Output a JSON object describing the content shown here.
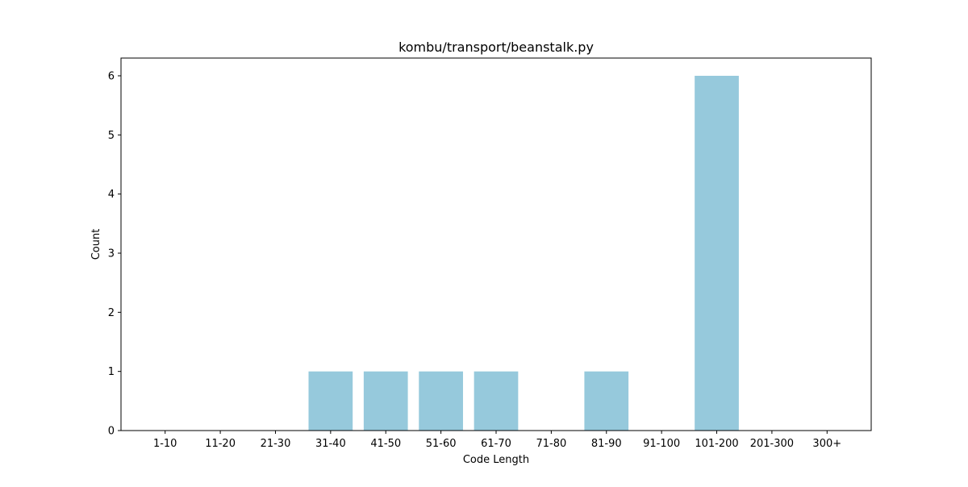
{
  "chart_data": {
    "type": "bar",
    "title": "kombu/transport/beanstalk.py",
    "xlabel": "Code Length",
    "ylabel": "Count",
    "categories": [
      "1-10",
      "11-20",
      "21-30",
      "31-40",
      "41-50",
      "51-60",
      "61-70",
      "71-80",
      "81-90",
      "91-100",
      "101-200",
      "201-300",
      "300+"
    ],
    "values": [
      0,
      0,
      0,
      1,
      1,
      1,
      1,
      0,
      1,
      0,
      6,
      0,
      0
    ],
    "yticks": [
      0,
      1,
      2,
      3,
      4,
      5,
      6
    ],
    "ylim": [
      0,
      6.3
    ],
    "grid": false,
    "colors": {
      "bar": "#96c9dc",
      "axis": "#000000"
    }
  }
}
